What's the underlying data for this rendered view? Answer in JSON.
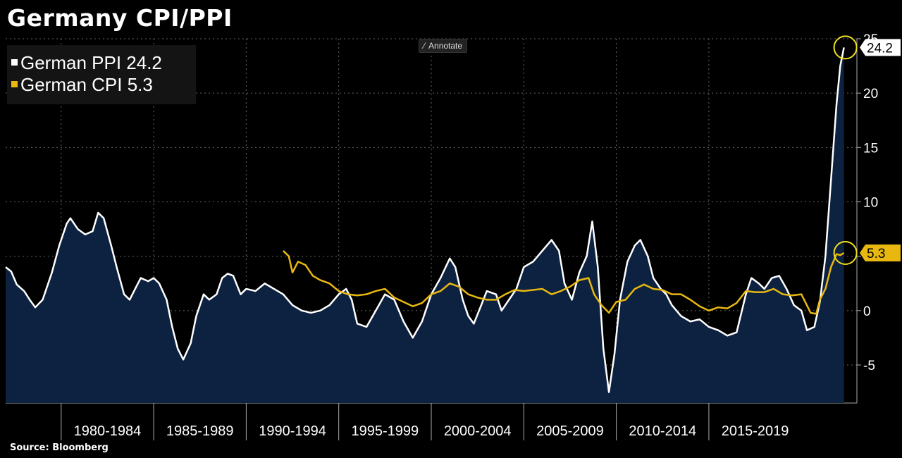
{
  "title": "Germany CPI/PPI",
  "annotate_label": "Annotate",
  "source": "Source:  Bloomberg",
  "legend": [
    {
      "label": "German PPI 24.2",
      "color": "#ffffff"
    },
    {
      "label": "German CPI 5.3",
      "color": "#e8b810"
    }
  ],
  "chart_data": {
    "type": "line",
    "title": "Germany CPI/PPI",
    "xlabel": "",
    "ylabel": "",
    "ylim": [
      -8.5,
      25
    ],
    "xlim": [
      1977.0,
      2023.0
    ],
    "y_ticks": [
      -5,
      0,
      5,
      10,
      15,
      20,
      25
    ],
    "x_categories": [
      "1980-1984",
      "1985-1989",
      "1990-1994",
      "1995-1999",
      "2000-2004",
      "2005-2009",
      "2010-2014",
      "2015-2019"
    ],
    "x_category_starts": [
      1980,
      1985,
      1990,
      1995,
      2000,
      2005,
      2010,
      2015
    ],
    "grid": true,
    "legend_position": "top-left",
    "series": [
      {
        "name": "German PPI",
        "color": "#ffffff",
        "fill": "#0d2240",
        "last_value": "24.2",
        "points": [
          [
            1977.0,
            4.0
          ],
          [
            1977.3,
            3.6
          ],
          [
            1977.6,
            2.4
          ],
          [
            1978.0,
            1.8
          ],
          [
            1978.3,
            1.0
          ],
          [
            1978.6,
            0.3
          ],
          [
            1979.0,
            1.0
          ],
          [
            1979.5,
            3.5
          ],
          [
            1979.9,
            6.0
          ],
          [
            1980.3,
            8.0
          ],
          [
            1980.5,
            8.5
          ],
          [
            1980.9,
            7.5
          ],
          [
            1981.3,
            7.0
          ],
          [
            1981.7,
            7.3
          ],
          [
            1982.0,
            9.0
          ],
          [
            1982.3,
            8.5
          ],
          [
            1982.7,
            6.0
          ],
          [
            1983.0,
            4.0
          ],
          [
            1983.4,
            1.5
          ],
          [
            1983.7,
            1.0
          ],
          [
            1984.0,
            2.0
          ],
          [
            1984.3,
            3.0
          ],
          [
            1984.7,
            2.7
          ],
          [
            1985.0,
            3.0
          ],
          [
            1985.3,
            2.5
          ],
          [
            1985.7,
            1.0
          ],
          [
            1986.0,
            -1.5
          ],
          [
            1986.3,
            -3.5
          ],
          [
            1986.6,
            -4.5
          ],
          [
            1987.0,
            -3.0
          ],
          [
            1987.3,
            -0.5
          ],
          [
            1987.7,
            1.5
          ],
          [
            1988.0,
            1.0
          ],
          [
            1988.4,
            1.5
          ],
          [
            1988.7,
            3.0
          ],
          [
            1989.0,
            3.4
          ],
          [
            1989.3,
            3.2
          ],
          [
            1989.7,
            1.5
          ],
          [
            1990.0,
            2.0
          ],
          [
            1990.5,
            1.8
          ],
          [
            1991.0,
            2.5
          ],
          [
            1991.5,
            2.0
          ],
          [
            1992.0,
            1.5
          ],
          [
            1992.5,
            0.5
          ],
          [
            1993.0,
            0.0
          ],
          [
            1993.5,
            -0.2
          ],
          [
            1994.0,
            0.0
          ],
          [
            1994.5,
            0.5
          ],
          [
            1995.0,
            1.5
          ],
          [
            1995.4,
            2.0
          ],
          [
            1995.7,
            1.0
          ],
          [
            1996.0,
            -1.2
          ],
          [
            1996.5,
            -1.5
          ],
          [
            1997.0,
            0.0
          ],
          [
            1997.5,
            1.5
          ],
          [
            1998.0,
            1.0
          ],
          [
            1998.5,
            -1.0
          ],
          [
            1999.0,
            -2.5
          ],
          [
            1999.5,
            -1.0
          ],
          [
            2000.0,
            1.5
          ],
          [
            2000.5,
            3.0
          ],
          [
            2001.0,
            4.8
          ],
          [
            2001.3,
            4.0
          ],
          [
            2001.7,
            1.0
          ],
          [
            2002.0,
            -0.5
          ],
          [
            2002.3,
            -1.2
          ],
          [
            2002.7,
            0.5
          ],
          [
            2003.0,
            1.8
          ],
          [
            2003.5,
            1.5
          ],
          [
            2003.8,
            0.0
          ],
          [
            2004.2,
            1.0
          ],
          [
            2004.6,
            2.0
          ],
          [
            2005.0,
            4.0
          ],
          [
            2005.5,
            4.5
          ],
          [
            2006.0,
            5.5
          ],
          [
            2006.5,
            6.5
          ],
          [
            2006.9,
            5.5
          ],
          [
            2007.2,
            2.5
          ],
          [
            2007.6,
            1.0
          ],
          [
            2008.0,
            3.5
          ],
          [
            2008.4,
            5.0
          ],
          [
            2008.7,
            8.2
          ],
          [
            2009.0,
            4.0
          ],
          [
            2009.3,
            -3.5
          ],
          [
            2009.6,
            -7.5
          ],
          [
            2009.9,
            -4.0
          ],
          [
            2010.2,
            1.0
          ],
          [
            2010.6,
            4.5
          ],
          [
            2011.0,
            6.0
          ],
          [
            2011.3,
            6.5
          ],
          [
            2011.7,
            5.0
          ],
          [
            2012.0,
            3.0
          ],
          [
            2012.4,
            2.0
          ],
          [
            2012.7,
            1.5
          ],
          [
            2013.0,
            0.5
          ],
          [
            2013.5,
            -0.5
          ],
          [
            2014.0,
            -1.0
          ],
          [
            2014.5,
            -0.8
          ],
          [
            2015.0,
            -1.5
          ],
          [
            2015.5,
            -1.8
          ],
          [
            2016.0,
            -2.3
          ],
          [
            2016.5,
            -2.0
          ],
          [
            2017.0,
            1.5
          ],
          [
            2017.3,
            3.0
          ],
          [
            2017.7,
            2.5
          ],
          [
            2018.0,
            2.0
          ],
          [
            2018.4,
            3.0
          ],
          [
            2018.8,
            3.2
          ],
          [
            2019.2,
            2.0
          ],
          [
            2019.6,
            0.5
          ],
          [
            2020.0,
            0.0
          ],
          [
            2020.3,
            -1.8
          ],
          [
            2020.7,
            -1.5
          ],
          [
            2021.0,
            0.8
          ],
          [
            2021.3,
            5.0
          ],
          [
            2021.6,
            12.0
          ],
          [
            2021.9,
            19.0
          ],
          [
            2022.1,
            22.5
          ],
          [
            2022.3,
            24.2
          ]
        ]
      },
      {
        "name": "German CPI",
        "color": "#e8b810",
        "last_value": "5.3",
        "points": [
          [
            1992.0,
            5.5
          ],
          [
            1992.3,
            5.0
          ],
          [
            1992.5,
            3.5
          ],
          [
            1992.8,
            4.5
          ],
          [
            1993.2,
            4.2
          ],
          [
            1993.6,
            3.2
          ],
          [
            1994.0,
            2.8
          ],
          [
            1994.5,
            2.5
          ],
          [
            1995.0,
            1.8
          ],
          [
            1995.5,
            1.5
          ],
          [
            1996.0,
            1.4
          ],
          [
            1996.5,
            1.5
          ],
          [
            1997.0,
            1.8
          ],
          [
            1997.5,
            2.0
          ],
          [
            1998.0,
            1.2
          ],
          [
            1998.5,
            0.8
          ],
          [
            1999.0,
            0.4
          ],
          [
            1999.5,
            0.7
          ],
          [
            2000.0,
            1.5
          ],
          [
            2000.5,
            1.8
          ],
          [
            2001.0,
            2.5
          ],
          [
            2001.5,
            2.2
          ],
          [
            2002.0,
            1.5
          ],
          [
            2002.5,
            1.2
          ],
          [
            2003.0,
            1.0
          ],
          [
            2003.5,
            1.0
          ],
          [
            2004.0,
            1.5
          ],
          [
            2004.5,
            1.9
          ],
          [
            2005.0,
            1.8
          ],
          [
            2005.5,
            1.9
          ],
          [
            2006.0,
            2.0
          ],
          [
            2006.5,
            1.5
          ],
          [
            2007.0,
            1.8
          ],
          [
            2007.5,
            2.2
          ],
          [
            2008.0,
            2.8
          ],
          [
            2008.5,
            3.0
          ],
          [
            2008.8,
            1.5
          ],
          [
            2009.2,
            0.5
          ],
          [
            2009.6,
            -0.2
          ],
          [
            2010.0,
            0.8
          ],
          [
            2010.5,
            1.0
          ],
          [
            2011.0,
            2.0
          ],
          [
            2011.5,
            2.4
          ],
          [
            2012.0,
            2.0
          ],
          [
            2012.5,
            1.9
          ],
          [
            2013.0,
            1.5
          ],
          [
            2013.5,
            1.5
          ],
          [
            2014.0,
            1.0
          ],
          [
            2014.5,
            0.4
          ],
          [
            2015.0,
            0.0
          ],
          [
            2015.5,
            0.3
          ],
          [
            2016.0,
            0.2
          ],
          [
            2016.5,
            0.7
          ],
          [
            2017.0,
            1.8
          ],
          [
            2017.5,
            1.7
          ],
          [
            2018.0,
            1.7
          ],
          [
            2018.5,
            2.0
          ],
          [
            2019.0,
            1.5
          ],
          [
            2019.5,
            1.4
          ],
          [
            2020.0,
            1.5
          ],
          [
            2020.5,
            -0.2
          ],
          [
            2020.8,
            -0.3
          ],
          [
            2021.0,
            1.0
          ],
          [
            2021.3,
            2.0
          ],
          [
            2021.6,
            4.0
          ],
          [
            2021.9,
            5.2
          ],
          [
            2022.1,
            5.1
          ],
          [
            2022.3,
            5.3
          ]
        ]
      }
    ]
  }
}
